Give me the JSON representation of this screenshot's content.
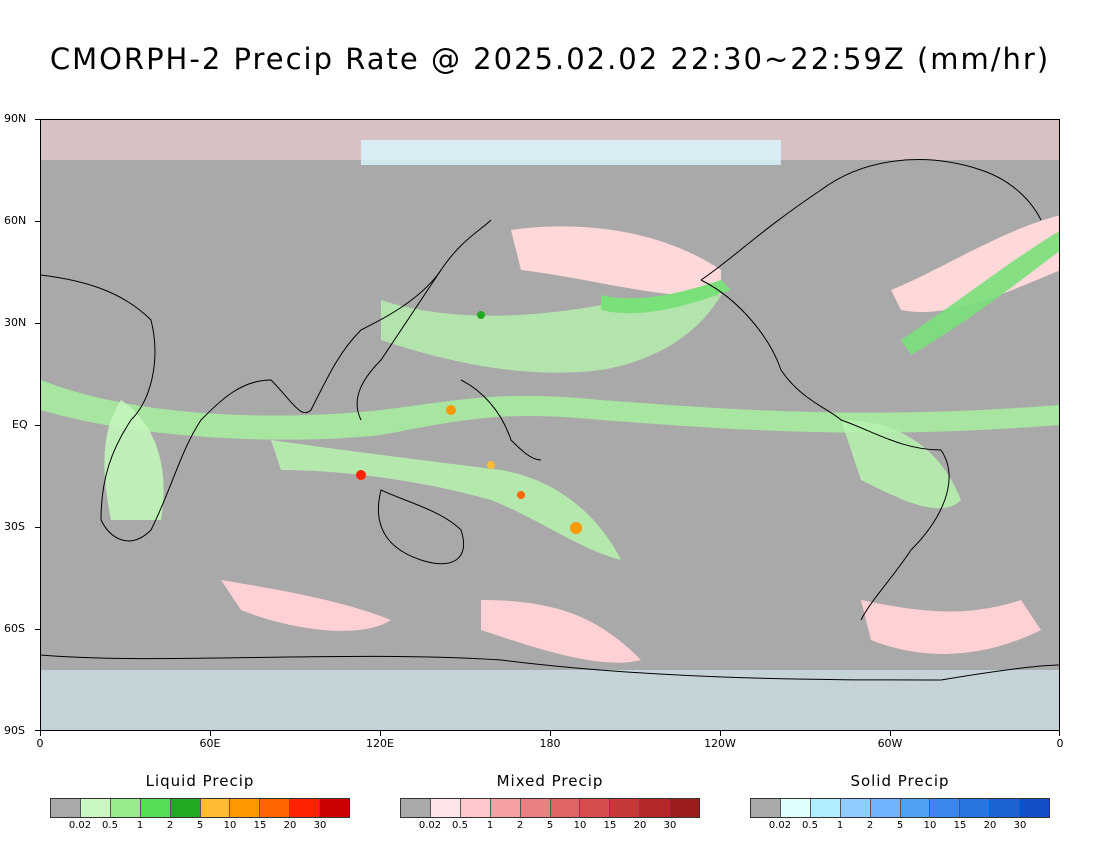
{
  "title": "CMORPH-2 Precip Rate @ 2025.02.02 22:30~22:59Z (mm/hr)",
  "y_axis_labels": [
    "90N",
    "60N",
    "30N",
    "EQ",
    "30S",
    "60S",
    "90S"
  ],
  "x_axis_labels": [
    "0",
    "60E",
    "120E",
    "180",
    "120W",
    "60W",
    "0"
  ],
  "legends": [
    {
      "title": "Liquid Precip",
      "colors": [
        "#a9a9a9",
        "#c8f7c0",
        "#96eb8a",
        "#55dd55",
        "#22aa22",
        "#ffbb33",
        "#ff9900",
        "#ff6600",
        "#ff2200",
        "#cc0000"
      ],
      "ticks": [
        "0.02",
        "0.5",
        "1",
        "2",
        "5",
        "10",
        "15",
        "20",
        "30"
      ]
    },
    {
      "title": "Mixed Precip",
      "colors": [
        "#a9a9a9",
        "#ffe4e8",
        "#ffc8cc",
        "#f4a0a4",
        "#ea8080",
        "#e06464",
        "#d44e4e",
        "#c63838",
        "#b42828",
        "#9a1c1c"
      ],
      "ticks": [
        "0.02",
        "0.5",
        "1",
        "2",
        "5",
        "10",
        "15",
        "20",
        "30"
      ]
    },
    {
      "title": "Solid Precip",
      "colors": [
        "#a9a9a9",
        "#e0ffff",
        "#b0eeff",
        "#90ccff",
        "#70b4ff",
        "#50a0f5",
        "#3a88ee",
        "#2a74e0",
        "#1c62d4",
        "#1250c8"
      ],
      "ticks": [
        "0.02",
        "0.5",
        "1",
        "2",
        "5",
        "10",
        "15",
        "20",
        "30"
      ]
    }
  ]
}
